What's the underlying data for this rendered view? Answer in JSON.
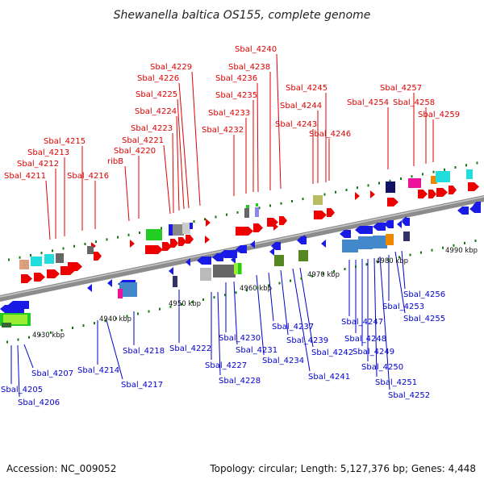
{
  "title": "Shewanella baltica OS155, complete genome",
  "footer": {
    "accession": "Accession: NC_009052",
    "summary": "Topology: circular; Length: 5,127,376 bp; Genes: 4,448"
  },
  "colors": {
    "backbone": "#8c8c8c",
    "forward_label": "#dd0000",
    "reverse_label": "#0000cc",
    "forward_gene": "#ee0000",
    "reverse_gene": "#1a1ae6",
    "tick": "#117711"
  },
  "scale": {
    "ticks": [
      "4930 kbp",
      "4940 kbp",
      "4950 kbp",
      "4960 kbp",
      "4970 kbp",
      "4980 kbp",
      "4990 kbp"
    ]
  },
  "forward_genes": [
    "Sbal_4211",
    "Sbal_4212",
    "Sbal_4213",
    "Sbal_4215",
    "Sbal_4216",
    "ribB",
    "Sbal_4220",
    "Sbal_4221",
    "Sbal_4223",
    "Sbal_4224",
    "Sbal_4225",
    "Sbal_4226",
    "Sbal_4229",
    "Sbal_4232",
    "Sbal_4233",
    "Sbal_4235",
    "Sbal_4236",
    "Sbal_4238",
    "Sbal_4240",
    "Sbal_4243",
    "Sbal_4244",
    "Sbal_4245",
    "Sbal_4246",
    "Sbal_4254",
    "Sbal_4257",
    "Sbal_4258",
    "Sbal_4259"
  ],
  "reverse_genes": [
    "Sbal_4205",
    "Sbal_4206",
    "Sbal_4207",
    "Sbal_4214",
    "Sbal_4217",
    "Sbal_4218",
    "Sbal_4222",
    "Sbal_4227",
    "Sbal_4228",
    "Sbal_4230",
    "Sbal_4231",
    "Sbal_4234",
    "Sbal_4237",
    "Sbal_4239",
    "Sbal_4241",
    "Sbal_4242",
    "Sbal_4247",
    "Sbal_4248",
    "Sbal_4249",
    "Sbal_4250",
    "Sbal_4251",
    "Sbal_4252",
    "Sbal_4253",
    "Sbal_4255",
    "Sbal_4256"
  ]
}
